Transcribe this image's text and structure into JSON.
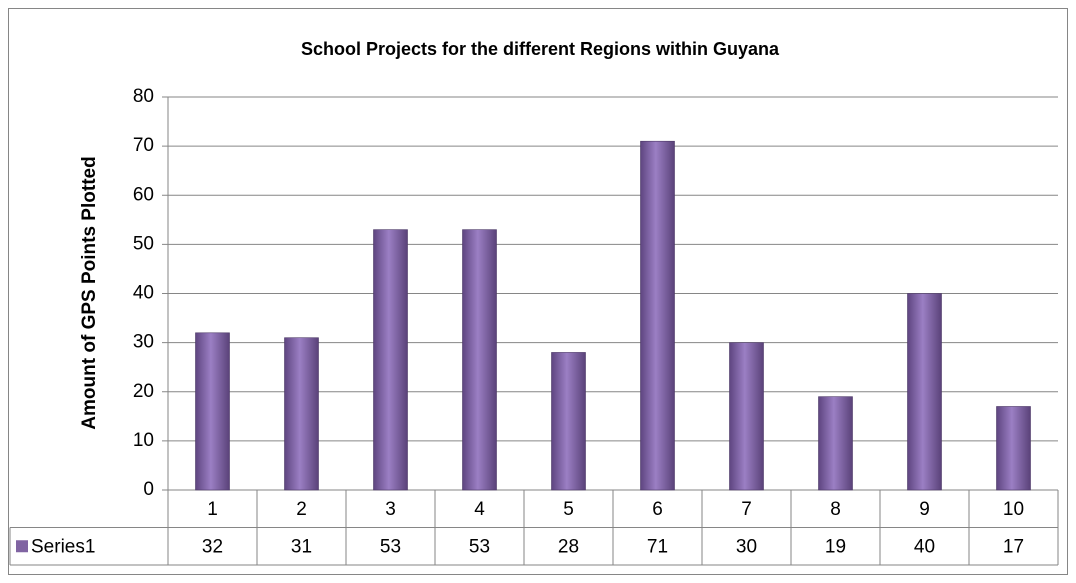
{
  "chart_data": {
    "type": "bar",
    "title": "School Projects for the different Regions within Guyana",
    "y_label": "Amount of GPS Points Plotted",
    "categories": [
      "1",
      "2",
      "3",
      "4",
      "5",
      "6",
      "7",
      "8",
      "9",
      "10"
    ],
    "series": [
      {
        "name": "Series1",
        "color": "#8064a2",
        "values": [
          32,
          31,
          53,
          53,
          28,
          71,
          30,
          19,
          40,
          17
        ]
      }
    ],
    "ylim": [
      0,
      80
    ],
    "yticks": [
      0,
      10,
      20,
      30,
      40,
      50,
      60,
      70,
      80
    ],
    "grid": true,
    "data_table": true
  }
}
